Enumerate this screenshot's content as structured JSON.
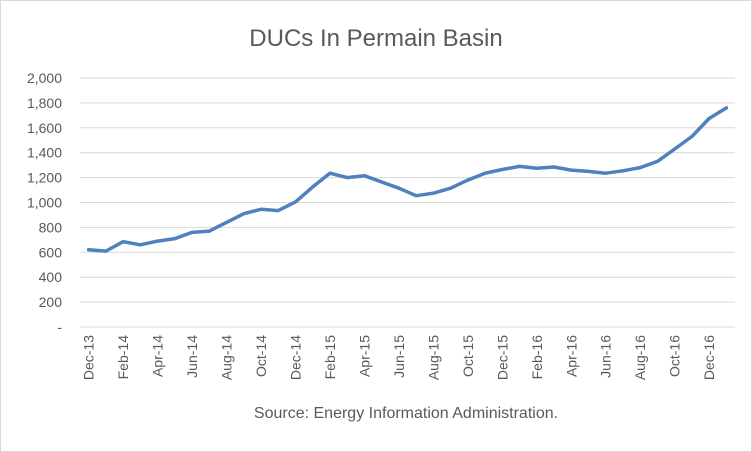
{
  "chart_data": {
    "type": "line",
    "title": "DUCs In Permain Basin",
    "source": "Source: Energy Information Administration.",
    "xlabel": "",
    "ylabel": "",
    "ylim": [
      0,
      2000
    ],
    "y_ticks": [
      0,
      200,
      400,
      600,
      800,
      1000,
      1200,
      1400,
      1600,
      1800,
      2000
    ],
    "y_tick_labels": [
      "-",
      "200",
      "400",
      "600",
      "800",
      "1,000",
      "1,200",
      "1,400",
      "1,600",
      "1,800",
      "2,000"
    ],
    "grid": true,
    "legend": "none",
    "line_color": "#4f81bd",
    "x_tick_labels": [
      "Dec-13",
      "Feb-14",
      "Apr-14",
      "Jun-14",
      "Aug-14",
      "Oct-14",
      "Dec-14",
      "Feb-15",
      "Apr-15",
      "Jun-15",
      "Aug-15",
      "Oct-15",
      "Dec-15",
      "Feb-16",
      "Apr-16",
      "Jun-16",
      "Aug-16",
      "Oct-16",
      "Dec-16"
    ],
    "categories": [
      "Dec-13",
      "Jan-14",
      "Feb-14",
      "Mar-14",
      "Apr-14",
      "May-14",
      "Jun-14",
      "Jul-14",
      "Aug-14",
      "Sep-14",
      "Oct-14",
      "Nov-14",
      "Dec-14",
      "Jan-15",
      "Feb-15",
      "Mar-15",
      "Apr-15",
      "May-15",
      "Jun-15",
      "Jul-15",
      "Aug-15",
      "Sep-15",
      "Oct-15",
      "Nov-15",
      "Dec-15",
      "Jan-16",
      "Feb-16",
      "Mar-16",
      "Apr-16",
      "May-16",
      "Jun-16",
      "Jul-16",
      "Aug-16",
      "Sep-16",
      "Oct-16",
      "Nov-16",
      "Dec-16",
      "Jan-17"
    ],
    "values": [
      620,
      610,
      685,
      660,
      690,
      710,
      760,
      770,
      840,
      910,
      945,
      935,
      1005,
      1125,
      1235,
      1200,
      1215,
      1165,
      1115,
      1055,
      1075,
      1115,
      1180,
      1235,
      1265,
      1290,
      1275,
      1285,
      1260,
      1250,
      1235,
      1255,
      1280,
      1330,
      1430,
      1530,
      1675,
      1760
    ]
  }
}
